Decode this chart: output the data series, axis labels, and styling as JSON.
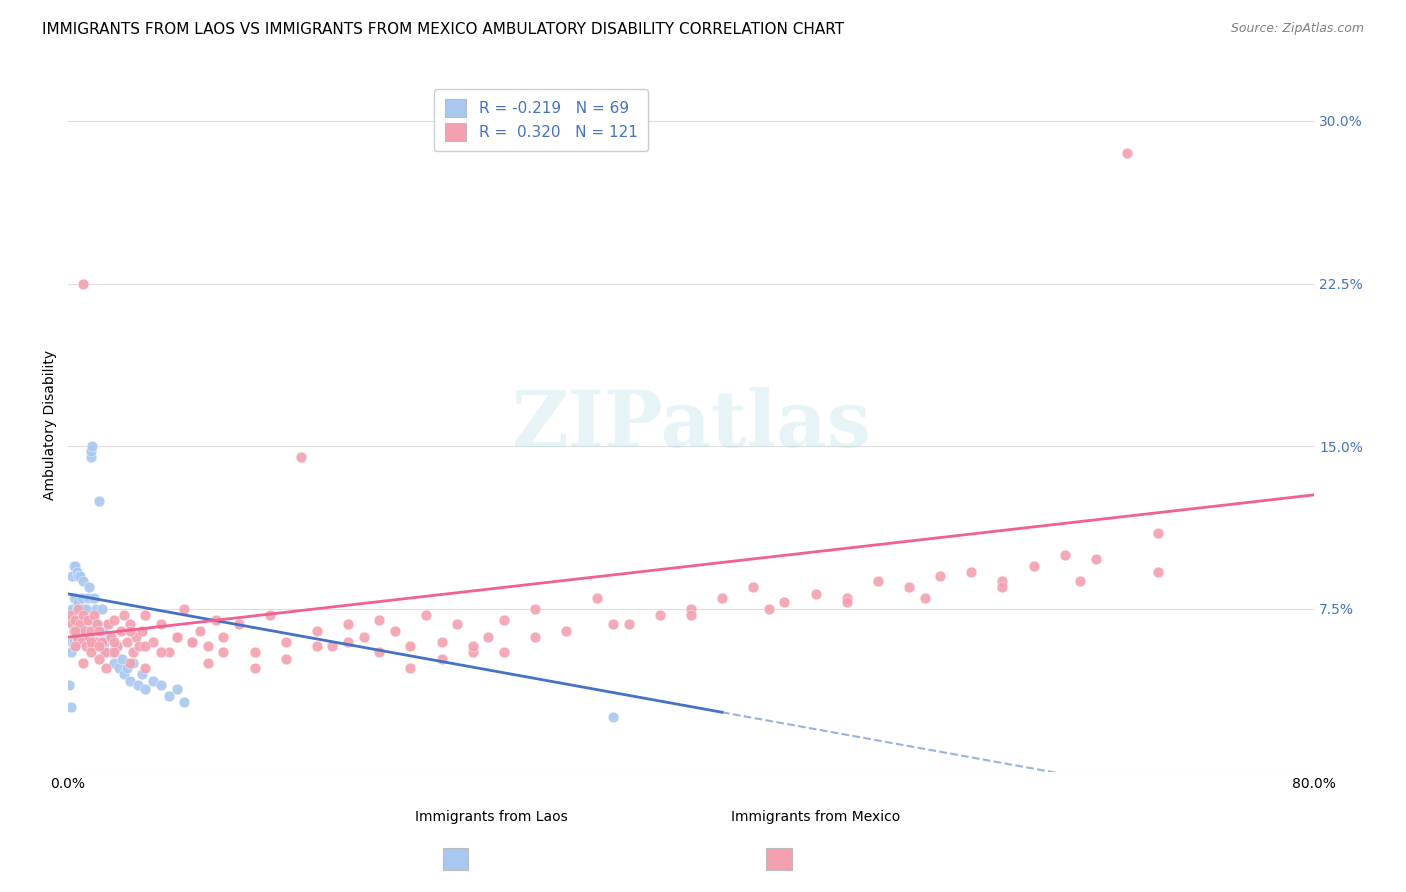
{
  "title": "IMMIGRANTS FROM LAOS VS IMMIGRANTS FROM MEXICO AMBULATORY DISABILITY CORRELATION CHART",
  "source": "Source: ZipAtlas.com",
  "ylabel": "Ambulatory Disability",
  "xlim": [
    0.0,
    0.8
  ],
  "ylim": [
    0.0,
    0.32
  ],
  "ytick_positions": [
    0.0,
    0.075,
    0.15,
    0.225,
    0.3
  ],
  "ytick_labels_right": [
    "",
    "7.5%",
    "15.0%",
    "22.5%",
    "30.0%"
  ],
  "xtick_positions": [
    0.0,
    0.2,
    0.4,
    0.6,
    0.8
  ],
  "xtick_labels": [
    "0.0%",
    "",
    "",
    "",
    "80.0%"
  ],
  "laos_color": "#a8c8f0",
  "mexico_color": "#f4a0b0",
  "laos_line_color": "#4472c4",
  "mexico_line_color": "#f06090",
  "laos_line_solid_end": 0.42,
  "laos_line_dashed_start": 0.42,
  "laos_line_dashed_end": 0.8,
  "laos_intercept": 0.082,
  "laos_slope": -0.13,
  "mexico_intercept": 0.062,
  "mexico_slope": 0.082,
  "watermark": "ZIPatlas",
  "background_color": "#ffffff",
  "grid_color": "#dddddd",
  "title_fontsize": 11,
  "axis_label_fontsize": 10,
  "tick_fontsize": 10,
  "legend_fontsize": 11,
  "right_tick_color": "#4472c4",
  "laos_scatter_x": [
    0.001,
    0.002,
    0.002,
    0.003,
    0.003,
    0.003,
    0.004,
    0.004,
    0.004,
    0.005,
    0.005,
    0.005,
    0.005,
    0.006,
    0.006,
    0.006,
    0.007,
    0.007,
    0.007,
    0.008,
    0.008,
    0.008,
    0.009,
    0.009,
    0.01,
    0.01,
    0.01,
    0.011,
    0.012,
    0.012,
    0.013,
    0.013,
    0.014,
    0.014,
    0.015,
    0.015,
    0.016,
    0.017,
    0.017,
    0.018,
    0.018,
    0.019,
    0.02,
    0.021,
    0.022,
    0.023,
    0.024,
    0.025,
    0.026,
    0.027,
    0.028,
    0.03,
    0.032,
    0.033,
    0.035,
    0.036,
    0.038,
    0.04,
    0.042,
    0.045,
    0.048,
    0.05,
    0.055,
    0.06,
    0.065,
    0.07,
    0.075,
    0.35,
    0.002
  ],
  "laos_scatter_y": [
    0.04,
    0.055,
    0.07,
    0.06,
    0.075,
    0.09,
    0.06,
    0.08,
    0.095,
    0.058,
    0.065,
    0.08,
    0.095,
    0.06,
    0.075,
    0.092,
    0.062,
    0.078,
    0.09,
    0.06,
    0.075,
    0.09,
    0.065,
    0.08,
    0.062,
    0.075,
    0.088,
    0.07,
    0.06,
    0.075,
    0.065,
    0.08,
    0.07,
    0.085,
    0.145,
    0.148,
    0.15,
    0.065,
    0.08,
    0.06,
    0.075,
    0.068,
    0.125,
    0.06,
    0.075,
    0.065,
    0.06,
    0.055,
    0.068,
    0.062,
    0.055,
    0.05,
    0.058,
    0.048,
    0.052,
    0.045,
    0.048,
    0.042,
    0.05,
    0.04,
    0.045,
    0.038,
    0.042,
    0.04,
    0.035,
    0.038,
    0.032,
    0.025,
    0.03
  ],
  "mexico_scatter_x": [
    0.002,
    0.003,
    0.004,
    0.005,
    0.006,
    0.007,
    0.008,
    0.009,
    0.01,
    0.011,
    0.012,
    0.013,
    0.014,
    0.015,
    0.016,
    0.017,
    0.018,
    0.019,
    0.02,
    0.022,
    0.024,
    0.026,
    0.028,
    0.03,
    0.032,
    0.034,
    0.036,
    0.038,
    0.04,
    0.042,
    0.044,
    0.046,
    0.048,
    0.05,
    0.055,
    0.06,
    0.065,
    0.07,
    0.075,
    0.08,
    0.085,
    0.09,
    0.095,
    0.1,
    0.11,
    0.12,
    0.13,
    0.14,
    0.15,
    0.16,
    0.17,
    0.18,
    0.19,
    0.2,
    0.21,
    0.22,
    0.23,
    0.24,
    0.25,
    0.26,
    0.27,
    0.28,
    0.3,
    0.32,
    0.34,
    0.36,
    0.38,
    0.4,
    0.42,
    0.44,
    0.46,
    0.48,
    0.5,
    0.52,
    0.54,
    0.56,
    0.58,
    0.6,
    0.62,
    0.64,
    0.66,
    0.68,
    0.7,
    0.005,
    0.01,
    0.015,
    0.02,
    0.025,
    0.03,
    0.04,
    0.05,
    0.06,
    0.07,
    0.08,
    0.09,
    0.1,
    0.12,
    0.14,
    0.16,
    0.18,
    0.2,
    0.22,
    0.24,
    0.26,
    0.28,
    0.3,
    0.35,
    0.4,
    0.45,
    0.5,
    0.55,
    0.6,
    0.65,
    0.7,
    0.005,
    0.01,
    0.015,
    0.02,
    0.03,
    0.04,
    0.05
  ],
  "mexico_scatter_y": [
    0.072,
    0.068,
    0.065,
    0.07,
    0.062,
    0.075,
    0.068,
    0.06,
    0.072,
    0.065,
    0.058,
    0.07,
    0.062,
    0.065,
    0.058,
    0.072,
    0.06,
    0.068,
    0.065,
    0.06,
    0.055,
    0.068,
    0.062,
    0.07,
    0.058,
    0.065,
    0.072,
    0.06,
    0.068,
    0.055,
    0.062,
    0.058,
    0.065,
    0.072,
    0.06,
    0.068,
    0.055,
    0.062,
    0.075,
    0.06,
    0.065,
    0.058,
    0.07,
    0.062,
    0.068,
    0.055,
    0.072,
    0.06,
    0.145,
    0.065,
    0.058,
    0.068,
    0.062,
    0.07,
    0.065,
    0.058,
    0.072,
    0.06,
    0.068,
    0.055,
    0.062,
    0.07,
    0.075,
    0.065,
    0.08,
    0.068,
    0.072,
    0.075,
    0.08,
    0.085,
    0.078,
    0.082,
    0.08,
    0.088,
    0.085,
    0.09,
    0.092,
    0.088,
    0.095,
    0.1,
    0.098,
    0.285,
    0.11,
    0.058,
    0.05,
    0.055,
    0.052,
    0.048,
    0.06,
    0.065,
    0.058,
    0.055,
    0.062,
    0.06,
    0.05,
    0.055,
    0.048,
    0.052,
    0.058,
    0.06,
    0.055,
    0.048,
    0.052,
    0.058,
    0.055,
    0.062,
    0.068,
    0.072,
    0.075,
    0.078,
    0.08,
    0.085,
    0.088,
    0.092,
    0.065,
    0.225,
    0.06,
    0.058,
    0.055,
    0.05,
    0.048
  ]
}
